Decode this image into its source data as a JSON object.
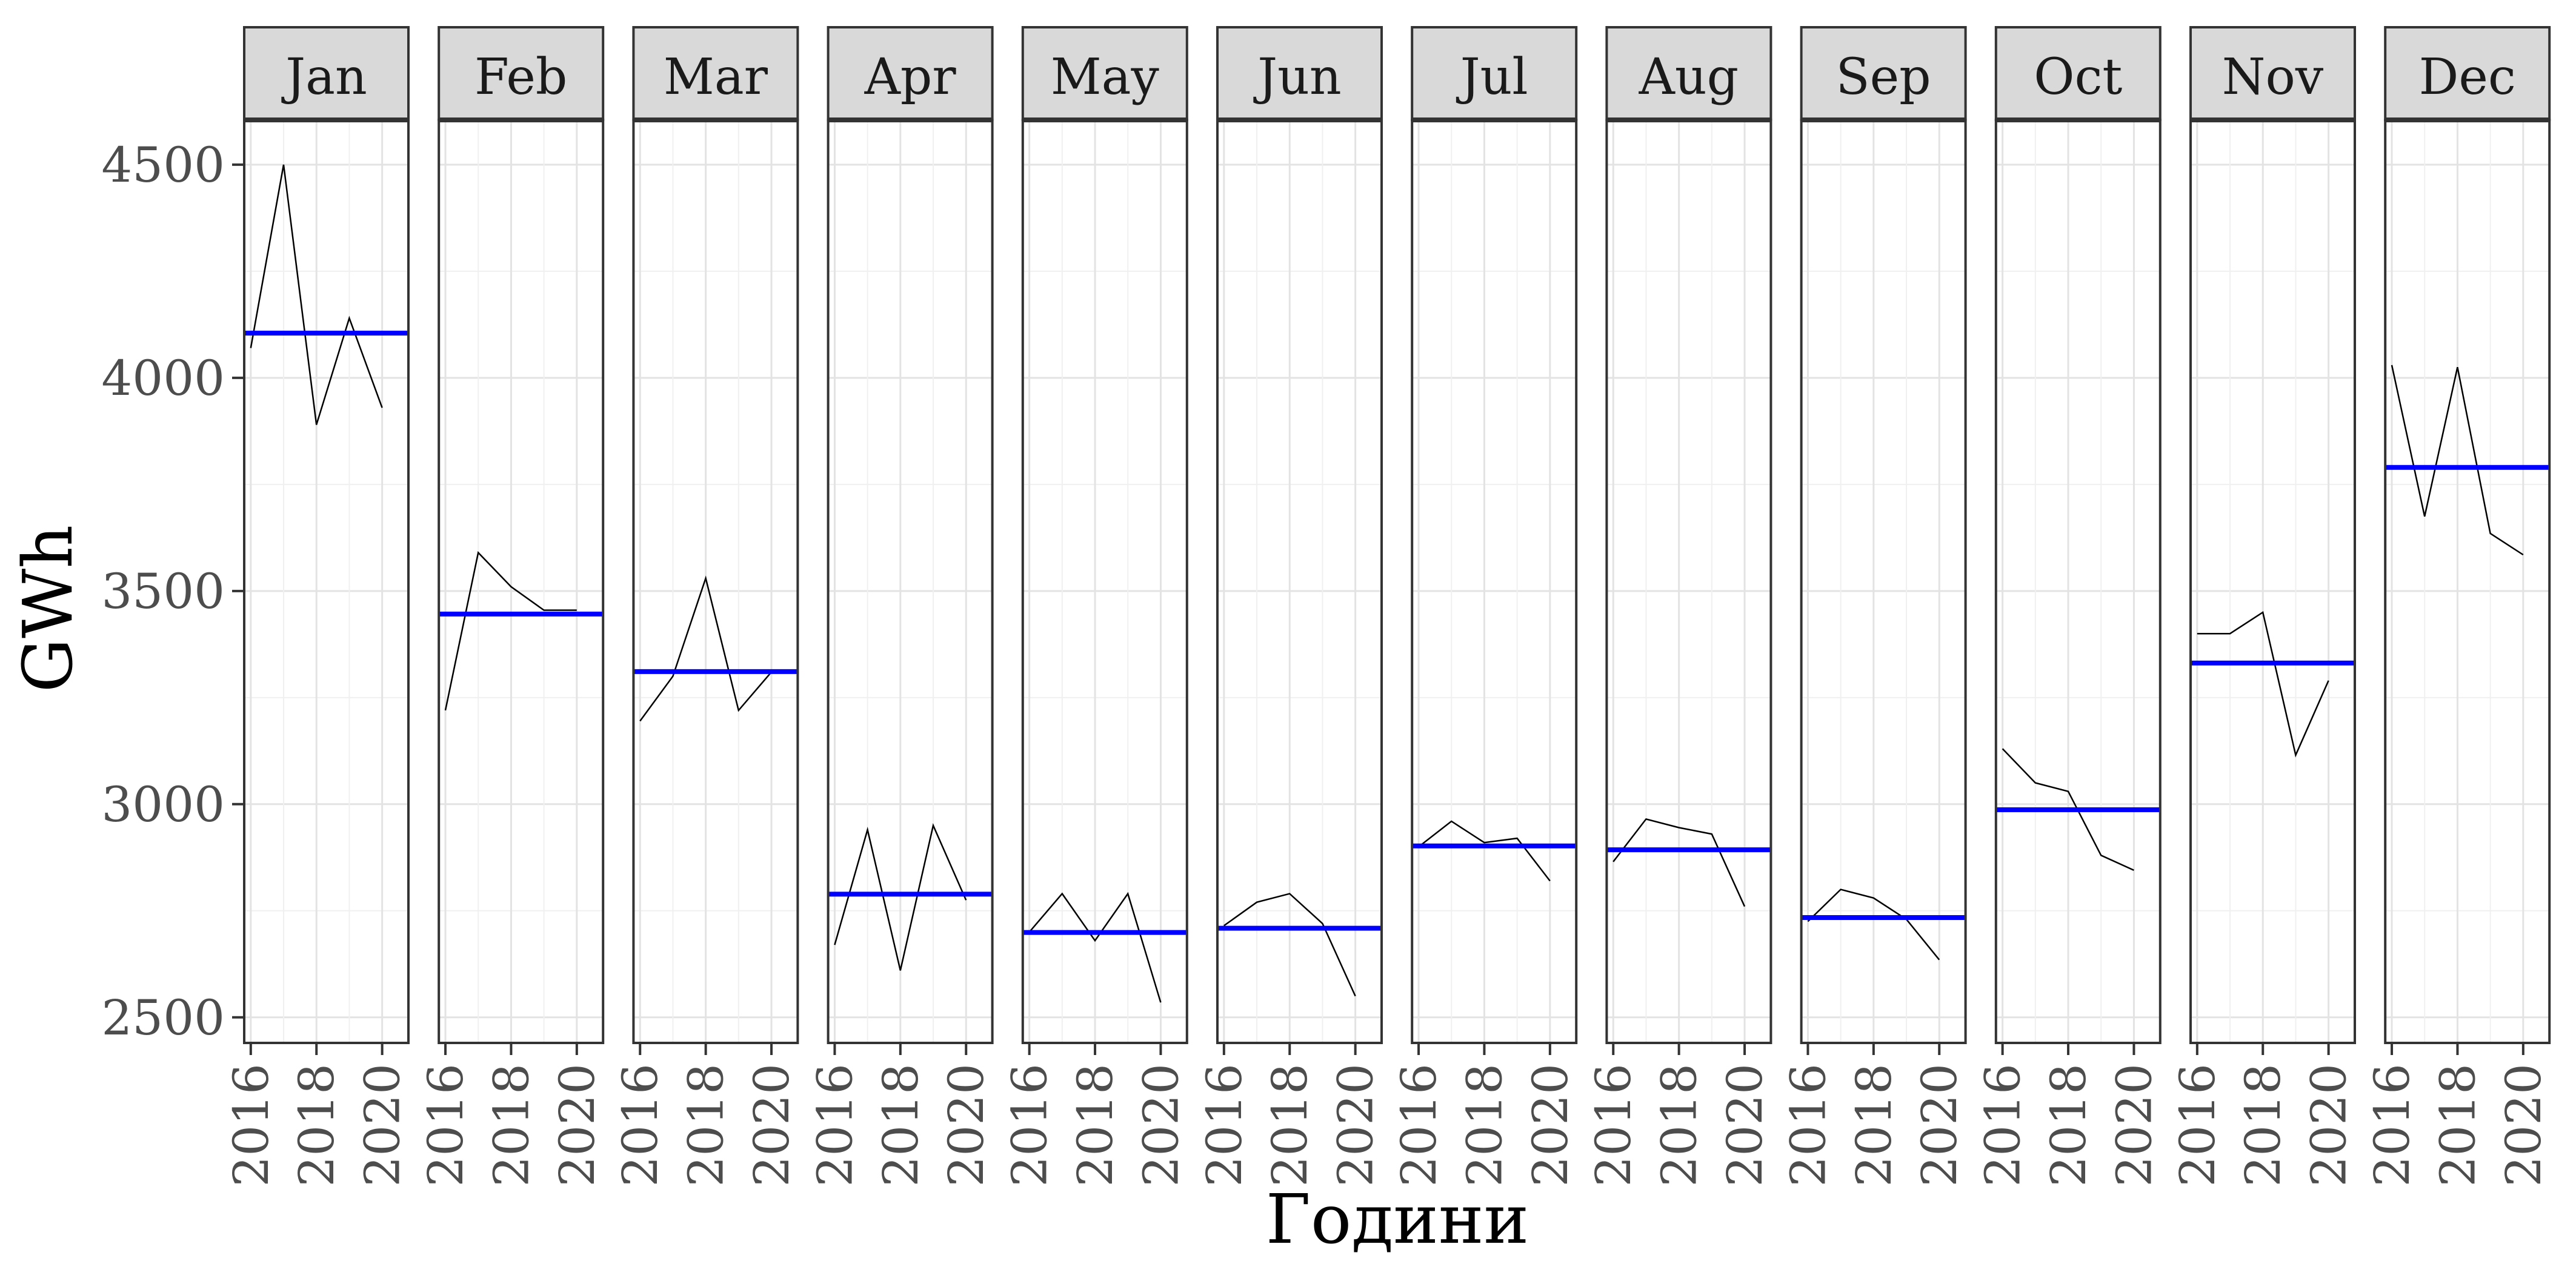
{
  "chart_data": {
    "type": "line",
    "xlabel": "Години",
    "ylabel": "GWh",
    "ylim": [
      2440,
      4605
    ],
    "xlim": [
      2015.8,
      2020.8
    ],
    "y_ticks": [
      2500,
      3000,
      3500,
      4000,
      4500
    ],
    "x_ticks": [
      2016,
      2018,
      2020
    ],
    "grid": true,
    "colors": {
      "line": "#000000",
      "mean_line": "#0000ff",
      "strip_fill": "#d9d9d9"
    },
    "panels": [
      {
        "month": "Jan",
        "x": [
          2016,
          2017,
          2018,
          2019,
          2020
        ],
        "values": [
          4070,
          4500,
          3890,
          4140,
          3930
        ],
        "mean": 4105
      },
      {
        "month": "Feb",
        "x": [
          2016,
          2017,
          2018,
          2019,
          2020
        ],
        "values": [
          3220,
          3590,
          3510,
          3455,
          3455
        ],
        "mean": 3446
      },
      {
        "month": "Mar",
        "x": [
          2016,
          2017,
          2018,
          2019,
          2020
        ],
        "values": [
          3195,
          3300,
          3530,
          3220,
          3310
        ],
        "mean": 3311
      },
      {
        "month": "Apr",
        "x": [
          2016,
          2017,
          2018,
          2019,
          2020
        ],
        "values": [
          2670,
          2940,
          2610,
          2950,
          2775
        ],
        "mean": 2789
      },
      {
        "month": "May",
        "x": [
          2016,
          2017,
          2018,
          2019,
          2020
        ],
        "values": [
          2700,
          2790,
          2680,
          2790,
          2535
        ],
        "mean": 2699
      },
      {
        "month": "Jun",
        "x": [
          2016,
          2017,
          2018,
          2019,
          2020
        ],
        "values": [
          2715,
          2770,
          2790,
          2720,
          2550
        ],
        "mean": 2709
      },
      {
        "month": "Jul",
        "x": [
          2016,
          2017,
          2018,
          2019,
          2020
        ],
        "values": [
          2900,
          2960,
          2910,
          2920,
          2820
        ],
        "mean": 2902
      },
      {
        "month": "Aug",
        "x": [
          2016,
          2017,
          2018,
          2019,
          2020
        ],
        "values": [
          2865,
          2965,
          2945,
          2930,
          2760
        ],
        "mean": 2893
      },
      {
        "month": "Sep",
        "x": [
          2016,
          2017,
          2018,
          2019,
          2020
        ],
        "values": [
          2725,
          2800,
          2780,
          2730,
          2635
        ],
        "mean": 2734
      },
      {
        "month": "Oct",
        "x": [
          2016,
          2017,
          2018,
          2019,
          2020
        ],
        "values": [
          3130,
          3050,
          3030,
          2880,
          2845
        ],
        "mean": 2987
      },
      {
        "month": "Nov",
        "x": [
          2016,
          2017,
          2018,
          2019,
          2020
        ],
        "values": [
          3400,
          3400,
          3450,
          3115,
          3290
        ],
        "mean": 3331
      },
      {
        "month": "Dec",
        "x": [
          2016,
          2017,
          2018,
          2019,
          2020
        ],
        "values": [
          4030,
          3675,
          4025,
          3635,
          3585
        ],
        "mean": 3790
      }
    ]
  }
}
